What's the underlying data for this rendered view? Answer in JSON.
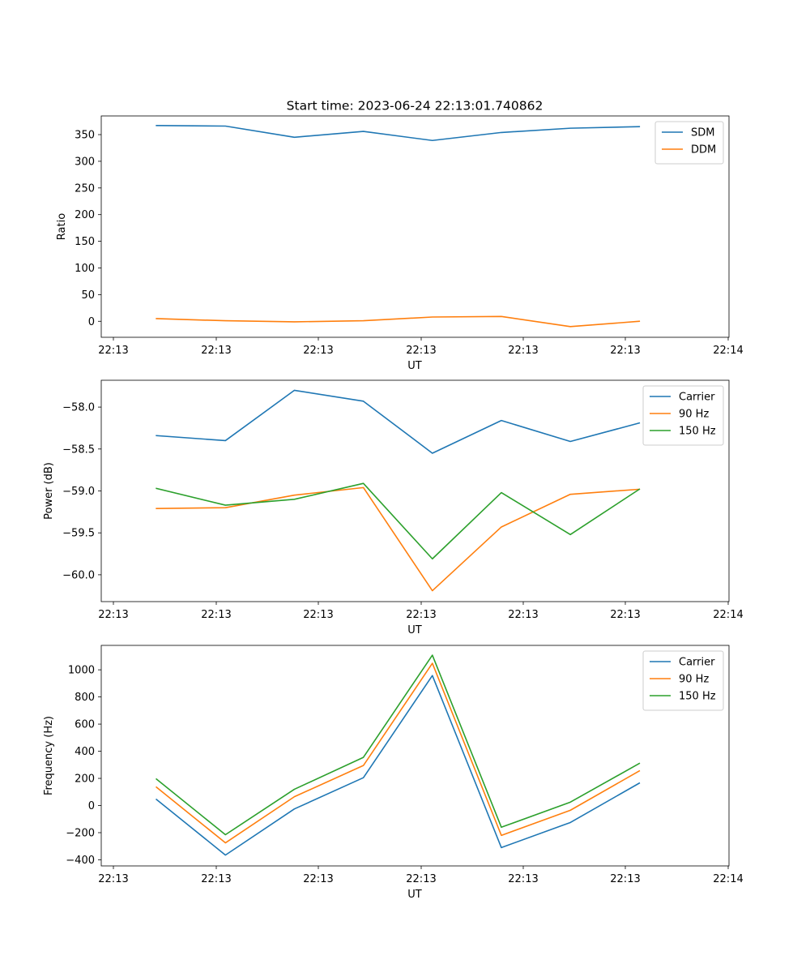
{
  "figure_title": "Start time: 2023-06-24 22:13:01.740862",
  "chart_data": [
    {
      "type": "line",
      "title": "Start time: 2023-06-24 22:13:01.740862",
      "xlabel": "UT",
      "ylabel": "Ratio",
      "x_tick_labels": [
        "22:13",
        "22:13",
        "22:13",
        "22:13",
        "22:13",
        "22:13",
        "22:14"
      ],
      "y_ticks": [
        0,
        50,
        100,
        150,
        200,
        250,
        300,
        350
      ],
      "ylim": [
        -30,
        385
      ],
      "x": [
        1,
        2,
        3,
        4,
        5,
        6,
        7,
        8
      ],
      "xlim": [
        0.2,
        9.3
      ],
      "legend_position": "upper right",
      "series": [
        {
          "name": "SDM",
          "color": "#1f77b4",
          "values": [
            367,
            366,
            345,
            356,
            339,
            354,
            362,
            365
          ]
        },
        {
          "name": "DDM",
          "color": "#ff7f0e",
          "values": [
            5,
            1,
            -1,
            1,
            8,
            9,
            -10,
            0
          ]
        }
      ]
    },
    {
      "type": "line",
      "title": "",
      "xlabel": "UT",
      "ylabel": "Power (dB)",
      "x_tick_labels": [
        "22:13",
        "22:13",
        "22:13",
        "22:13",
        "22:13",
        "22:13",
        "22:14"
      ],
      "y_ticks": [
        -58.0,
        -58.5,
        -59.0,
        -59.5,
        -60.0
      ],
      "y_tick_labels": [
        "−58.0",
        "−58.5",
        "−59.0",
        "−59.5",
        "−60.0"
      ],
      "ylim": [
        -60.32,
        -57.68
      ],
      "x": [
        1,
        2,
        3,
        4,
        5,
        6,
        7,
        8
      ],
      "xlim": [
        0.2,
        9.3
      ],
      "legend_position": "upper right",
      "series": [
        {
          "name": "Carrier",
          "color": "#1f77b4",
          "values": [
            -58.34,
            -58.4,
            -57.8,
            -57.93,
            -58.55,
            -58.16,
            -58.41,
            -58.19
          ]
        },
        {
          "name": "90 Hz",
          "color": "#ff7f0e",
          "values": [
            -59.21,
            -59.2,
            -59.05,
            -58.96,
            -60.19,
            -59.43,
            -59.04,
            -58.98
          ]
        },
        {
          "name": "150 Hz",
          "color": "#2ca02c",
          "values": [
            -58.97,
            -59.17,
            -59.1,
            -58.91,
            -59.81,
            -59.02,
            -59.52,
            -58.98
          ]
        }
      ]
    },
    {
      "type": "line",
      "title": "",
      "xlabel": "UT",
      "ylabel": "Frequency (Hz)",
      "x_tick_labels": [
        "22:13",
        "22:13",
        "22:13",
        "22:13",
        "22:13",
        "22:13",
        "22:14"
      ],
      "y_ticks": [
        -400,
        -200,
        0,
        200,
        400,
        600,
        800,
        1000
      ],
      "y_tick_labels": [
        "−400",
        "−200",
        "0",
        "200",
        "400",
        "600",
        "800",
        "1000"
      ],
      "ylim": [
        -445,
        1180
      ],
      "x": [
        1,
        2,
        3,
        4,
        5,
        6,
        7,
        8
      ],
      "xlim": [
        0.2,
        9.3
      ],
      "legend_position": "upper right",
      "series": [
        {
          "name": "Carrier",
          "color": "#1f77b4",
          "values": [
            45,
            -365,
            -25,
            205,
            958,
            -310,
            -125,
            165
          ]
        },
        {
          "name": "90 Hz",
          "color": "#ff7f0e",
          "values": [
            135,
            -275,
            65,
            295,
            1048,
            -220,
            -35,
            255
          ]
        },
        {
          "name": "150 Hz",
          "color": "#2ca02c",
          "values": [
            195,
            -215,
            120,
            355,
            1108,
            -160,
            25,
            310
          ]
        }
      ]
    }
  ]
}
